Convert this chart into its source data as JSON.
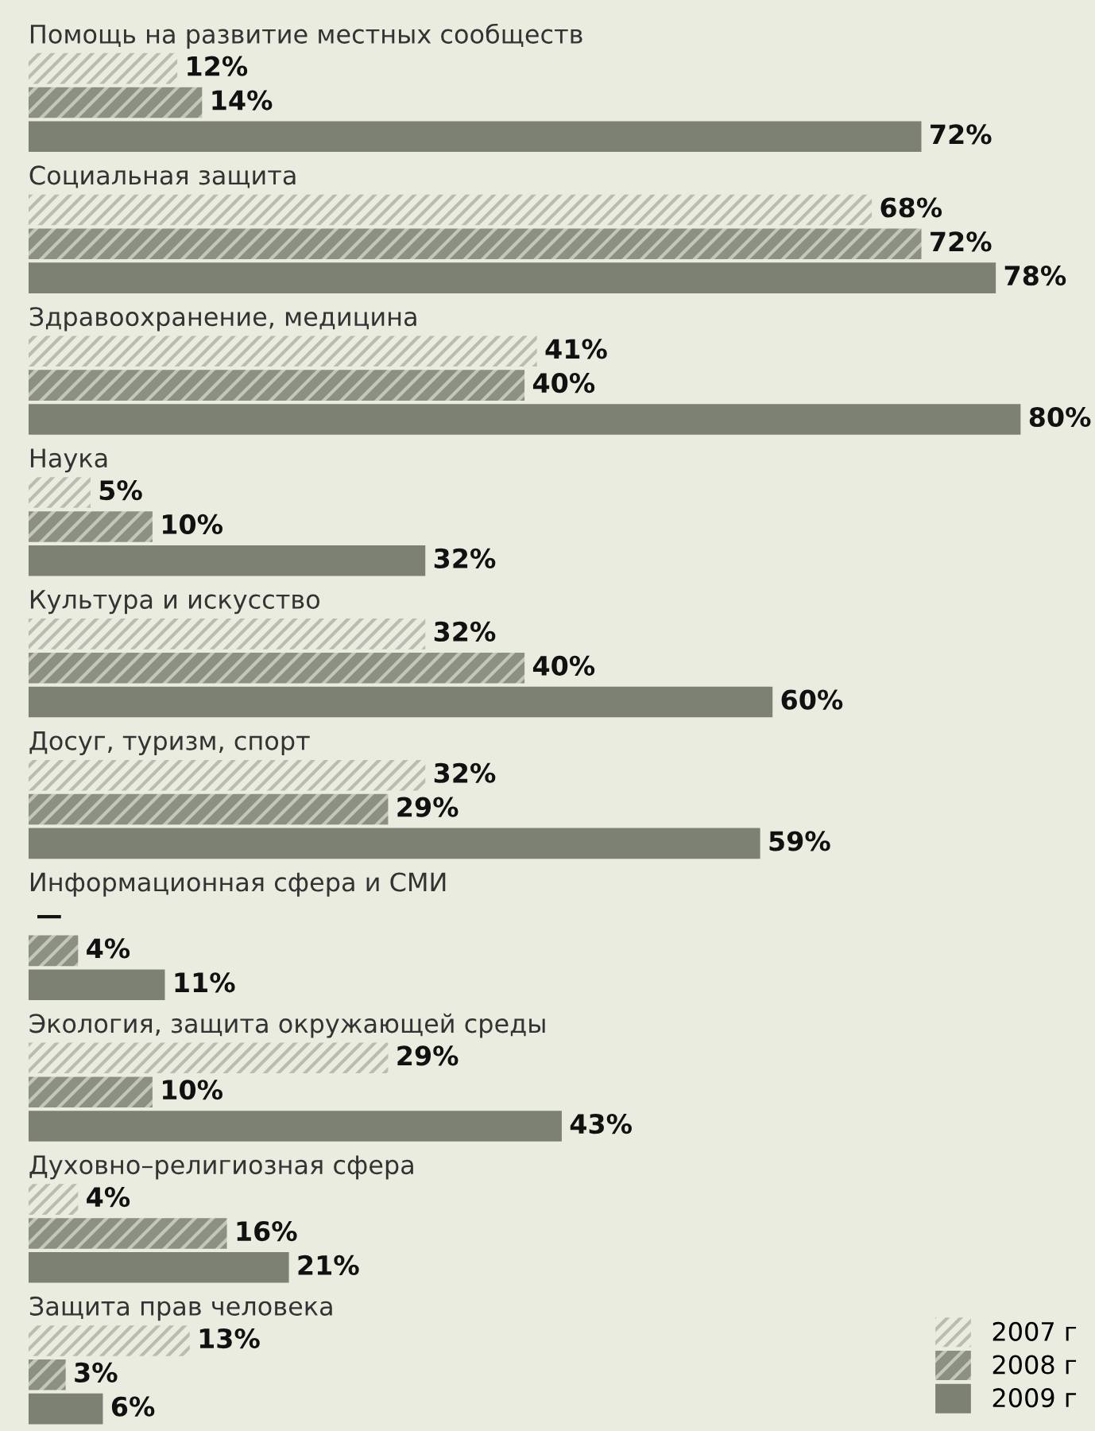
{
  "chart_data": {
    "type": "bar",
    "orientation": "horizontal",
    "legend": "bottom right",
    "categories": [
      "Помощь на развитие местных сообществ",
      "Социальная защита",
      "Здравоохранение, медицина",
      "Наука",
      "Культура и искусство",
      "Досуг, туризм, спорт",
      "Информационная сфера и СМИ",
      "Экология, защита окружающей среды",
      "Духовно–религиозная сфера",
      "Защита прав человека"
    ],
    "xlim": [
      0,
      86
    ],
    "series": [
      {
        "name": "2007 г",
        "color": "#b9bcb0",
        "values": [
          12,
          68,
          41,
          5,
          32,
          32,
          null,
          29,
          4,
          13
        ],
        "value_labels": [
          "12%",
          "68%",
          "41%",
          "5%",
          "32%",
          "32%",
          "—",
          "29%",
          "4%",
          "13%"
        ]
      },
      {
        "name": "2008 г",
        "color": "#8b9081",
        "values": [
          14,
          72,
          40,
          10,
          40,
          29,
          4,
          10,
          16,
          3
        ],
        "value_labels": [
          "14%",
          "72%",
          "40%",
          "10%",
          "40%",
          "29%",
          "4%",
          "10%",
          "16%",
          "3%"
        ]
      },
      {
        "name": "2009 г",
        "color": "#7c8173",
        "values": [
          72,
          78,
          80,
          32,
          60,
          59,
          11,
          43,
          21,
          6
        ],
        "value_labels": [
          "72%",
          "78%",
          "80%",
          "32%",
          "60%",
          "59%",
          "11%",
          "43%",
          "21%",
          "6%"
        ]
      }
    ]
  }
}
